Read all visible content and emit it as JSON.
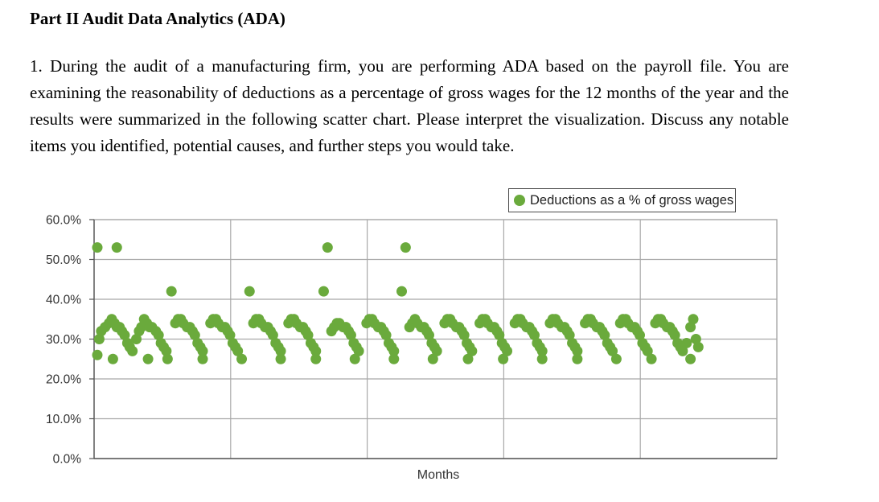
{
  "document": {
    "heading": "Part II Audit Data Analytics (ADA)",
    "question": "1. During the audit of a manufacturing firm, you are performing ADA based on the payroll file. You are examining the reasonability of deductions as a percentage of gross wages for the 12 months of the year and the results were summarized in the following scatter chart. Please interpret the visualization. Discuss any notable items you identified, potential causes, and further steps you would take."
  },
  "chart_data": {
    "type": "scatter",
    "title": "",
    "xlabel": "Months",
    "ylabel": "",
    "ylim": [
      0,
      60
    ],
    "yticks": [
      "0.0%",
      "10.0%",
      "20.0%",
      "30.0%",
      "40.0%",
      "50.0%",
      "60.0%"
    ],
    "xlim": [
      0,
      156
    ],
    "x_gridlines": 6,
    "grid": true,
    "legend_position": "top-right",
    "marker_color": "#6aaa3c",
    "series": [
      {
        "name": "Deductions as a % of gross wages",
        "points": [
          [
            0,
            53
          ],
          [
            5,
            53
          ],
          [
            19,
            42
          ],
          [
            39,
            42
          ],
          [
            58,
            42
          ],
          [
            78,
            42
          ],
          [
            59,
            53
          ],
          [
            79,
            53
          ],
          [
            0,
            26
          ],
          [
            0.5,
            30
          ],
          [
            1,
            32
          ],
          [
            2,
            33
          ],
          [
            3,
            34
          ],
          [
            3.7,
            35
          ],
          [
            4.4,
            34
          ],
          [
            5,
            33
          ],
          [
            5.7,
            33
          ],
          [
            6.3,
            32
          ],
          [
            7,
            31
          ],
          [
            7.7,
            29
          ],
          [
            8.3,
            28
          ],
          [
            9,
            27
          ],
          [
            10,
            30
          ],
          [
            10.7,
            32
          ],
          [
            11.3,
            33
          ],
          [
            12,
            35
          ],
          [
            12.7,
            34
          ],
          [
            13.4,
            33
          ],
          [
            14,
            33
          ],
          [
            15,
            32
          ],
          [
            15.7,
            31
          ],
          [
            16.3,
            29
          ],
          [
            17,
            28
          ],
          [
            17.7,
            27
          ],
          [
            20,
            34
          ],
          [
            20.7,
            35
          ],
          [
            21.4,
            35
          ],
          [
            22,
            34
          ],
          [
            23,
            33
          ],
          [
            23.7,
            33
          ],
          [
            24.4,
            32
          ],
          [
            25,
            31
          ],
          [
            25.7,
            29
          ],
          [
            26.4,
            28
          ],
          [
            27,
            27
          ],
          [
            29,
            34
          ],
          [
            29.7,
            35
          ],
          [
            30.4,
            35
          ],
          [
            31,
            34
          ],
          [
            32,
            33
          ],
          [
            32.7,
            33
          ],
          [
            33.4,
            32
          ],
          [
            34,
            31
          ],
          [
            34.7,
            29
          ],
          [
            35.4,
            28
          ],
          [
            36,
            27
          ],
          [
            40,
            34
          ],
          [
            40.7,
            35
          ],
          [
            41.4,
            35
          ],
          [
            42,
            34
          ],
          [
            43,
            33
          ],
          [
            43.7,
            33
          ],
          [
            44.4,
            32
          ],
          [
            45,
            31
          ],
          [
            45.7,
            29
          ],
          [
            46.4,
            28
          ],
          [
            47,
            27
          ],
          [
            49,
            34
          ],
          [
            49.7,
            35
          ],
          [
            50.4,
            35
          ],
          [
            51,
            34
          ],
          [
            52,
            33
          ],
          [
            52.7,
            33
          ],
          [
            53.4,
            32
          ],
          [
            54,
            31
          ],
          [
            54.7,
            29
          ],
          [
            55.4,
            28
          ],
          [
            56,
            27
          ],
          [
            60,
            32
          ],
          [
            60.7,
            33
          ],
          [
            61.4,
            34
          ],
          [
            62,
            34
          ],
          [
            63,
            33
          ],
          [
            63.7,
            33
          ],
          [
            64.4,
            32
          ],
          [
            65,
            31
          ],
          [
            65.7,
            29
          ],
          [
            66.4,
            28
          ],
          [
            67,
            27
          ],
          [
            69,
            34
          ],
          [
            69.7,
            35
          ],
          [
            70.4,
            35
          ],
          [
            71,
            34
          ],
          [
            72,
            33
          ],
          [
            72.7,
            33
          ],
          [
            73.4,
            32
          ],
          [
            74,
            31
          ],
          [
            74.7,
            29
          ],
          [
            75.4,
            28
          ],
          [
            76,
            27
          ],
          [
            80,
            33
          ],
          [
            80.7,
            34
          ],
          [
            81.4,
            35
          ],
          [
            82,
            34
          ],
          [
            83,
            33
          ],
          [
            83.7,
            33
          ],
          [
            84.4,
            32
          ],
          [
            85,
            31
          ],
          [
            85.7,
            29
          ],
          [
            86.4,
            28
          ],
          [
            87,
            27
          ],
          [
            89,
            34
          ],
          [
            89.7,
            35
          ],
          [
            90.4,
            35
          ],
          [
            91,
            34
          ],
          [
            92,
            33
          ],
          [
            92.7,
            33
          ],
          [
            93.4,
            32
          ],
          [
            94,
            31
          ],
          [
            94.7,
            29
          ],
          [
            95.4,
            28
          ],
          [
            96,
            27
          ],
          [
            98,
            34
          ],
          [
            98.7,
            35
          ],
          [
            99.4,
            35
          ],
          [
            100,
            34
          ],
          [
            101,
            33
          ],
          [
            101.7,
            33
          ],
          [
            102.4,
            32
          ],
          [
            103,
            31
          ],
          [
            103.7,
            29
          ],
          [
            104.4,
            28
          ],
          [
            105,
            27
          ],
          [
            107,
            34
          ],
          [
            107.7,
            35
          ],
          [
            108.4,
            35
          ],
          [
            109,
            34
          ],
          [
            110,
            33
          ],
          [
            110.7,
            33
          ],
          [
            111.4,
            32
          ],
          [
            112,
            31
          ],
          [
            112.7,
            29
          ],
          [
            113.4,
            28
          ],
          [
            114,
            27
          ],
          [
            116,
            34
          ],
          [
            116.7,
            35
          ],
          [
            117.4,
            35
          ],
          [
            118,
            34
          ],
          [
            119,
            33
          ],
          [
            119.7,
            33
          ],
          [
            120.4,
            32
          ],
          [
            121,
            31
          ],
          [
            121.7,
            29
          ],
          [
            122.4,
            28
          ],
          [
            123,
            27
          ],
          [
            125,
            34
          ],
          [
            125.7,
            35
          ],
          [
            126.4,
            35
          ],
          [
            127,
            34
          ],
          [
            128,
            33
          ],
          [
            128.7,
            33
          ],
          [
            129.4,
            32
          ],
          [
            130,
            31
          ],
          [
            130.7,
            29
          ],
          [
            131.4,
            28
          ],
          [
            132,
            27
          ],
          [
            134,
            34
          ],
          [
            134.7,
            35
          ],
          [
            135.4,
            35
          ],
          [
            136,
            34
          ],
          [
            137,
            33
          ],
          [
            137.7,
            33
          ],
          [
            138.4,
            32
          ],
          [
            139,
            31
          ],
          [
            139.7,
            29
          ],
          [
            140.4,
            28
          ],
          [
            141,
            27
          ],
          [
            143,
            34
          ],
          [
            143.7,
            35
          ],
          [
            144.4,
            35
          ],
          [
            145,
            34
          ],
          [
            146,
            33
          ],
          [
            146.7,
            33
          ],
          [
            147.4,
            32
          ],
          [
            148,
            31
          ],
          [
            148.7,
            29
          ],
          [
            149.4,
            28
          ],
          [
            150,
            27
          ],
          [
            151,
            29
          ],
          [
            152,
            33
          ],
          [
            152.7,
            35
          ],
          [
            153.4,
            30
          ],
          [
            154,
            28
          ],
          [
            4,
            25
          ],
          [
            13,
            25
          ],
          [
            18,
            25
          ],
          [
            27,
            25
          ],
          [
            37,
            25
          ],
          [
            47,
            25
          ],
          [
            56,
            25
          ],
          [
            66,
            25
          ],
          [
            76,
            25
          ],
          [
            86,
            25
          ],
          [
            95,
            25
          ],
          [
            104,
            25
          ],
          [
            114,
            25
          ],
          [
            123,
            25
          ],
          [
            133,
            25
          ],
          [
            142,
            25
          ],
          [
            152,
            25
          ]
        ]
      }
    ]
  }
}
